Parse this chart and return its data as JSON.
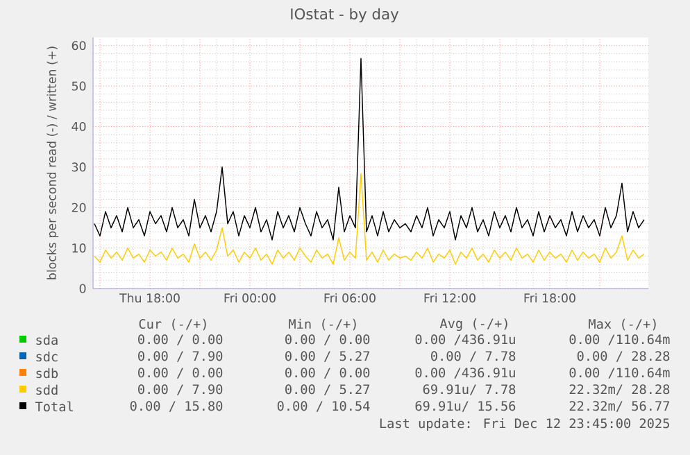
{
  "chart_data": {
    "type": "line",
    "title": "IOstat - by day",
    "ylabel": "blocks per second read (-) / written (+)",
    "x": [
      "2025-12-11T14:40",
      "2025-12-11T15:00",
      "2025-12-11T15:20",
      "2025-12-11T15:40",
      "2025-12-11T16:00",
      "2025-12-11T16:20",
      "2025-12-11T16:40",
      "2025-12-11T17:00",
      "2025-12-11T17:20",
      "2025-12-11T17:40",
      "2025-12-11T18:00",
      "2025-12-11T18:20",
      "2025-12-11T18:40",
      "2025-12-11T19:00",
      "2025-12-11T19:20",
      "2025-12-11T19:40",
      "2025-12-11T20:00",
      "2025-12-11T20:20",
      "2025-12-11T20:40",
      "2025-12-11T21:00",
      "2025-12-11T21:20",
      "2025-12-11T21:40",
      "2025-12-11T22:00",
      "2025-12-11T22:20",
      "2025-12-11T22:40",
      "2025-12-11T23:00",
      "2025-12-11T23:20",
      "2025-12-11T23:40",
      "2025-12-12T00:00",
      "2025-12-12T00:20",
      "2025-12-12T00:40",
      "2025-12-12T01:00",
      "2025-12-12T01:20",
      "2025-12-12T01:40",
      "2025-12-12T02:00",
      "2025-12-12T02:20",
      "2025-12-12T02:40",
      "2025-12-12T03:00",
      "2025-12-12T03:20",
      "2025-12-12T03:40",
      "2025-12-12T04:00",
      "2025-12-12T04:20",
      "2025-12-12T04:40",
      "2025-12-12T05:00",
      "2025-12-12T05:20",
      "2025-12-12T05:40",
      "2025-12-12T06:00",
      "2025-12-12T06:20",
      "2025-12-12T06:40",
      "2025-12-12T07:00",
      "2025-12-12T07:20",
      "2025-12-12T07:40",
      "2025-12-12T08:00",
      "2025-12-12T08:20",
      "2025-12-12T08:40",
      "2025-12-12T09:00",
      "2025-12-12T09:20",
      "2025-12-12T09:40",
      "2025-12-12T10:00",
      "2025-12-12T10:20",
      "2025-12-12T10:40",
      "2025-12-12T11:00",
      "2025-12-12T11:20",
      "2025-12-12T11:40",
      "2025-12-12T12:00",
      "2025-12-12T12:20",
      "2025-12-12T12:40",
      "2025-12-12T13:00",
      "2025-12-12T13:20",
      "2025-12-12T13:40",
      "2025-12-12T14:00",
      "2025-12-12T14:20",
      "2025-12-12T14:40",
      "2025-12-12T15:00",
      "2025-12-12T15:20",
      "2025-12-12T15:40",
      "2025-12-12T16:00",
      "2025-12-12T16:20",
      "2025-12-12T16:40",
      "2025-12-12T17:00",
      "2025-12-12T17:20",
      "2025-12-12T17:40",
      "2025-12-12T18:00",
      "2025-12-12T18:20",
      "2025-12-12T18:40",
      "2025-12-12T19:00",
      "2025-12-12T19:20",
      "2025-12-12T19:40",
      "2025-12-12T20:00",
      "2025-12-12T20:20",
      "2025-12-12T20:40",
      "2025-12-12T21:00",
      "2025-12-12T21:20",
      "2025-12-12T21:40",
      "2025-12-12T22:00",
      "2025-12-12T22:20",
      "2025-12-12T22:40",
      "2025-12-12T23:00",
      "2025-12-12T23:20",
      "2025-12-12T23:40"
    ],
    "series": [
      {
        "name": "sda",
        "color": "#00cc00",
        "values": [
          null,
          null,
          null,
          null,
          null,
          null,
          null,
          null,
          null,
          null,
          null,
          null,
          null,
          null,
          null,
          null,
          null,
          null,
          null,
          null,
          null,
          null,
          null,
          null,
          null,
          null,
          null,
          null,
          null,
          null,
          null,
          null,
          null,
          null,
          null,
          null,
          null,
          null,
          null,
          null,
          null,
          null,
          null,
          null,
          null,
          null,
          null,
          null,
          null,
          null,
          null,
          null,
          null,
          null,
          null,
          null,
          null,
          null,
          null,
          null,
          null,
          null,
          null,
          null,
          null,
          null,
          null,
          null,
          null,
          null,
          null,
          null,
          null,
          null,
          null,
          null,
          null,
          null,
          null,
          null,
          null,
          null,
          null,
          null,
          null,
          null,
          null,
          null,
          null,
          null,
          null,
          null,
          null,
          null,
          null,
          null,
          null,
          null,
          null,
          null
        ]
      },
      {
        "name": "sdc",
        "color": "#0066b3",
        "values": [
          null,
          null,
          null,
          null,
          null,
          null,
          null,
          null,
          null,
          null,
          null,
          null,
          null,
          null,
          null,
          null,
          null,
          null,
          null,
          null,
          null,
          null,
          null,
          null,
          null,
          null,
          null,
          null,
          null,
          null,
          null,
          null,
          null,
          null,
          null,
          null,
          null,
          null,
          null,
          null,
          null,
          null,
          null,
          null,
          null,
          null,
          null,
          null,
          null,
          null,
          null,
          null,
          null,
          null,
          null,
          null,
          null,
          null,
          null,
          null,
          null,
          null,
          null,
          null,
          null,
          null,
          null,
          null,
          null,
          null,
          null,
          null,
          null,
          null,
          null,
          null,
          null,
          null,
          null,
          null,
          null,
          null,
          null,
          null,
          null,
          null,
          null,
          null,
          null,
          null,
          null,
          null,
          null,
          null,
          null,
          null,
          null,
          null,
          null,
          null
        ]
      },
      {
        "name": "sdb",
        "color": "#ff8000",
        "values": [
          null,
          null,
          null,
          null,
          null,
          null,
          null,
          null,
          null,
          null,
          null,
          null,
          null,
          null,
          null,
          null,
          null,
          null,
          null,
          null,
          null,
          null,
          null,
          null,
          null,
          null,
          null,
          null,
          null,
          null,
          null,
          null,
          null,
          null,
          null,
          null,
          null,
          null,
          null,
          null,
          null,
          null,
          null,
          null,
          null,
          null,
          null,
          null,
          null,
          null,
          null,
          null,
          null,
          null,
          null,
          null,
          null,
          null,
          null,
          null,
          null,
          null,
          null,
          null,
          null,
          null,
          null,
          null,
          null,
          null,
          null,
          null,
          null,
          null,
          null,
          null,
          null,
          null,
          null,
          null,
          null,
          null,
          null,
          null,
          null,
          null,
          null,
          null,
          null,
          null,
          null,
          null,
          null,
          null,
          null,
          null,
          null,
          null,
          null,
          null
        ]
      },
      {
        "name": "sdd",
        "color": "#ffcc00",
        "values": [
          8,
          6.5,
          9.5,
          7.5,
          9,
          7,
          10,
          7.5,
          8.5,
          6.5,
          9.5,
          8,
          9,
          7,
          10,
          7.5,
          8.5,
          6.5,
          11,
          7.5,
          9,
          7,
          9.5,
          15,
          8,
          9.5,
          6.5,
          9,
          7.5,
          10,
          7,
          8.5,
          6,
          9.5,
          7.5,
          9,
          7,
          10,
          8,
          6.5,
          9.5,
          7.5,
          8.5,
          6,
          12.5,
          7,
          9,
          7.5,
          28.4,
          7,
          9,
          6.5,
          9.5,
          7,
          8.5,
          7.5,
          8,
          7,
          9,
          7.5,
          10,
          6.5,
          8.5,
          7.5,
          9.5,
          6,
          9,
          7.5,
          10,
          7,
          8.5,
          6.5,
          9.5,
          7.5,
          9,
          7,
          10,
          7.5,
          8.5,
          6.5,
          9.5,
          7,
          9,
          7.5,
          8.5,
          6.5,
          9.5,
          7,
          9,
          7.5,
          8.5,
          6.5,
          10,
          7.5,
          9,
          13,
          7,
          9.5,
          7.5,
          8.5
        ]
      },
      {
        "name": "Total",
        "color": "#000000",
        "values": [
          16,
          13,
          19,
          15,
          18,
          14,
          20,
          15,
          17,
          13,
          19,
          16,
          18,
          14,
          20,
          15,
          17,
          13,
          22,
          15,
          18,
          14,
          19,
          30,
          16,
          19,
          13,
          18,
          15,
          20,
          14,
          17,
          12,
          19,
          15,
          18,
          14,
          20,
          16,
          13,
          19,
          15,
          17,
          12,
          25,
          14,
          18,
          15,
          56.8,
          14,
          18,
          13,
          19,
          14,
          17,
          15,
          16,
          14,
          18,
          15,
          20,
          13,
          17,
          15,
          19,
          12,
          18,
          15,
          20,
          14,
          17,
          13,
          19,
          15,
          18,
          14,
          20,
          15,
          17,
          13,
          19,
          14,
          18,
          15,
          17,
          13,
          19,
          14,
          18,
          15,
          17,
          13,
          20,
          15,
          18,
          26,
          14,
          19,
          15,
          17
        ]
      }
    ],
    "xlim": [
      "2025-12-11T14:35",
      "2025-12-12T23:55"
    ],
    "xticks": [
      {
        "value": "2025-12-11T15:00",
        "label": null
      },
      {
        "value": "2025-12-11T18:00",
        "label": "Thu 18:00"
      },
      {
        "value": "2025-12-11T21:00",
        "label": null
      },
      {
        "value": "2025-12-12T00:00",
        "label": "Fri 00:00"
      },
      {
        "value": "2025-12-12T03:00",
        "label": null
      },
      {
        "value": "2025-12-12T06:00",
        "label": "Fri 06:00"
      },
      {
        "value": "2025-12-12T09:00",
        "label": null
      },
      {
        "value": "2025-12-12T12:00",
        "label": "Fri 12:00"
      },
      {
        "value": "2025-12-12T15:00",
        "label": null
      },
      {
        "value": "2025-12-12T18:00",
        "label": "Fri 18:00"
      },
      {
        "value": "2025-12-12T21:00",
        "label": null
      }
    ],
    "ylim": [
      0,
      62
    ],
    "yticks": [
      0,
      10,
      20,
      30,
      40,
      50,
      60
    ],
    "grid": true,
    "legend": "bottom",
    "marker": "none",
    "line_style": "solid",
    "annotations": [
      "Cur (-/+)",
      "Min (-/+)",
      "Avg (-/+)",
      "Max (-/+)",
      "0.00 / 0.00",
      "0.00 / 0.00",
      "0.00 /436.91u",
      "0.00 /110.64m",
      "0.00 / 7.90",
      "0.00 / 5.27",
      "0.00 / 7.78",
      "0.00 / 28.28",
      "0.00 / 0.00",
      "0.00 / 0.00",
      "0.00 /436.91u",
      "0.00 /110.64m",
      "0.00 / 7.90",
      "0.00 / 5.27",
      "69.91u/ 7.78",
      "22.32m/ 28.28",
      "0.00 / 15.80",
      "0.00 / 10.54",
      "69.91u/ 15.56",
      "22.32m/ 56.77",
      "Last update: Fri Dec 12 23:45:00 2025"
    ]
  }
}
